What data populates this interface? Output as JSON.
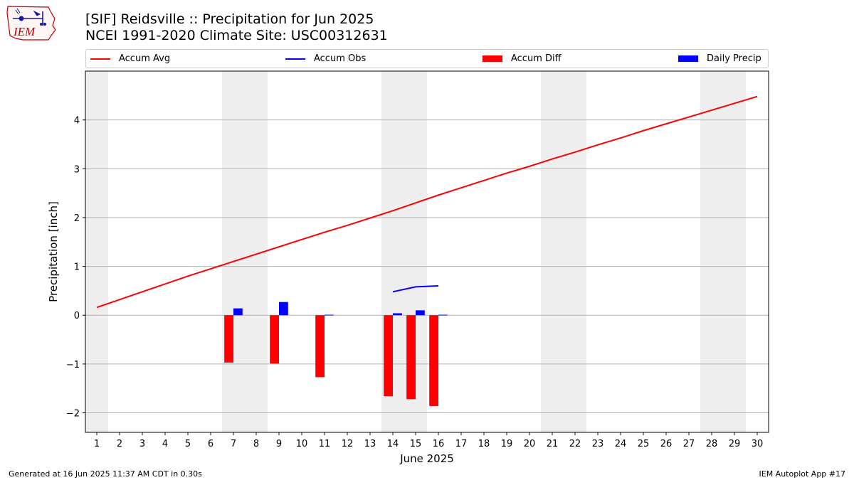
{
  "header": {
    "title_line1": "[SIF] Reidsville :: Precipitation for Jun 2025",
    "title_line2": "NCEI 1991-2020 Climate Site: USC00312631"
  },
  "logo": {
    "text": "IEM"
  },
  "legend": {
    "items": [
      {
        "label": "Accum Avg",
        "kind": "line",
        "color": "#ff0000"
      },
      {
        "label": "Accum Obs",
        "kind": "line",
        "color": "#0000ff"
      },
      {
        "label": "Accum Diff",
        "kind": "patch",
        "color": "#ff0000"
      },
      {
        "label": "Daily Precip",
        "kind": "patch",
        "color": "#0000ff"
      }
    ]
  },
  "footer": {
    "left": "Generated at 16 Jun 2025 11:37 AM CDT in 0.30s",
    "right": "IEM Autoplot App #17"
  },
  "chart_data": {
    "type": "bar+line",
    "title": "[SIF] Reidsville :: Precipitation for Jun 2025",
    "xlabel": "June 2025",
    "ylabel": "Precipitation [inch]",
    "xlim": [
      0.5,
      30.5
    ],
    "ylim": [
      -2.4,
      5.0
    ],
    "yticks": [
      -2,
      -1,
      0,
      1,
      2,
      3,
      4
    ],
    "xticks": [
      1,
      2,
      3,
      4,
      5,
      6,
      7,
      8,
      9,
      10,
      11,
      12,
      13,
      14,
      15,
      16,
      17,
      18,
      19,
      20,
      21,
      22,
      23,
      24,
      25,
      26,
      27,
      28,
      29,
      30
    ],
    "grid": "horizontal",
    "weekend_shading": [
      [
        0.5,
        1.5
      ],
      [
        6.5,
        8.5
      ],
      [
        13.5,
        15.5
      ],
      [
        20.5,
        22.5
      ],
      [
        27.5,
        29.5
      ]
    ],
    "series": [
      {
        "name": "Accum Avg",
        "type": "line",
        "color": "#ff0000",
        "x": [
          1,
          2,
          3,
          4,
          5,
          6,
          7,
          8,
          9,
          10,
          11,
          12,
          13,
          14,
          15,
          16,
          17,
          18,
          19,
          20,
          21,
          22,
          23,
          24,
          25,
          26,
          27,
          28,
          29,
          30
        ],
        "values": [
          0.16,
          0.32,
          0.48,
          0.64,
          0.8,
          0.95,
          1.1,
          1.25,
          1.4,
          1.55,
          1.7,
          1.84,
          1.99,
          2.14,
          2.3,
          2.46,
          2.61,
          2.76,
          2.91,
          3.05,
          3.2,
          3.34,
          3.49,
          3.63,
          3.78,
          3.92,
          4.06,
          4.2,
          4.34,
          4.48
        ]
      },
      {
        "name": "Accum Obs",
        "type": "line",
        "color": "#0000ff",
        "x": [
          14,
          15,
          16
        ],
        "values": [
          0.48,
          0.58,
          0.6
        ]
      },
      {
        "name": "Accum Diff",
        "type": "bar",
        "color": "#ff0000",
        "x": [
          7,
          9,
          11,
          14,
          15,
          16
        ],
        "values": [
          -0.97,
          -0.99,
          -1.27,
          -1.66,
          -1.72,
          -1.86
        ]
      },
      {
        "name": "Daily Precip",
        "type": "bar",
        "color": "#0000ff",
        "x": [
          7,
          9,
          11,
          14,
          15,
          16
        ],
        "values": [
          0.14,
          0.27,
          0.01,
          0.04,
          0.1,
          0.01
        ]
      }
    ]
  }
}
